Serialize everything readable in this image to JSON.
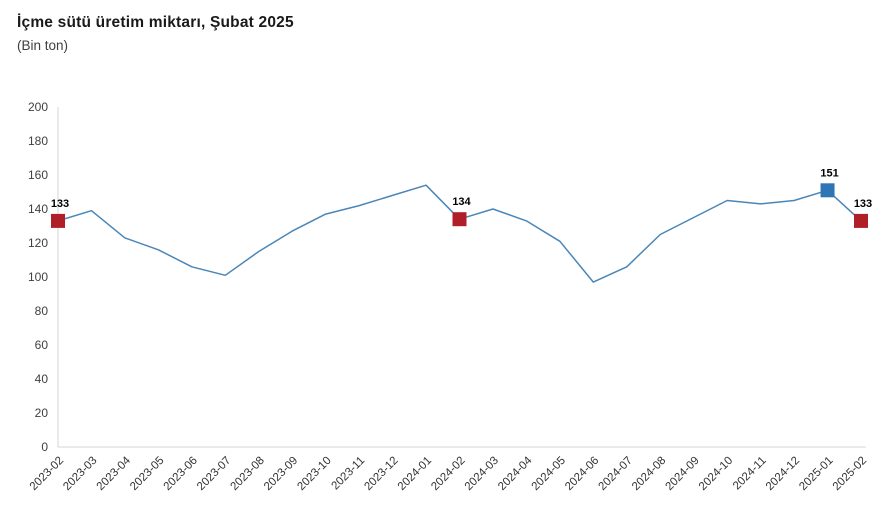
{
  "title": "İçme sütü üretim miktarı, Şubat 2025",
  "subtitle": "(Bin ton)",
  "colors": {
    "line": "#4a86b8",
    "marker_red": "#b01e28",
    "marker_blue": "#2e75b6",
    "axis_line": "#d6d6d6",
    "ytick_text": "#404040",
    "xtick_text": "#333333",
    "point_label_text": "#000000"
  },
  "chart_data": {
    "type": "line",
    "title": "İçme sütü üretim miktarı, Şubat 2025",
    "subtitle": "(Bin ton)",
    "unit": "Bin ton",
    "categories": [
      "2023-02",
      "2023-03",
      "2023-04",
      "2023-05",
      "2023-06",
      "2023-07",
      "2023-08",
      "2023-09",
      "2023-10",
      "2023-11",
      "2023-12",
      "2024-01",
      "2024-02",
      "2024-03",
      "2024-04",
      "2024-05",
      "2024-06",
      "2024-07",
      "2024-08",
      "2024-09",
      "2024-10",
      "2024-11",
      "2024-12",
      "2025-01",
      "2025-02"
    ],
    "values": [
      133,
      139,
      123,
      116,
      106,
      101,
      115,
      127,
      137,
      142,
      148,
      154,
      134,
      140,
      133,
      121,
      97,
      106,
      125,
      135,
      145,
      143,
      145,
      151,
      133
    ],
    "ylim": [
      0,
      200
    ],
    "ytick_step": 20,
    "grid": false,
    "legend": false,
    "highlighted_points": [
      {
        "category": "2023-02",
        "value": 133,
        "label": "133",
        "marker": "square",
        "color": "#b01e28"
      },
      {
        "category": "2024-02",
        "value": 134,
        "label": "134",
        "marker": "square",
        "color": "#b01e28"
      },
      {
        "category": "2025-01",
        "value": 151,
        "label": "151",
        "marker": "square",
        "color": "#2e75b6"
      },
      {
        "category": "2025-02",
        "value": 133,
        "label": "133",
        "marker": "square",
        "color": "#b01e28"
      }
    ]
  }
}
